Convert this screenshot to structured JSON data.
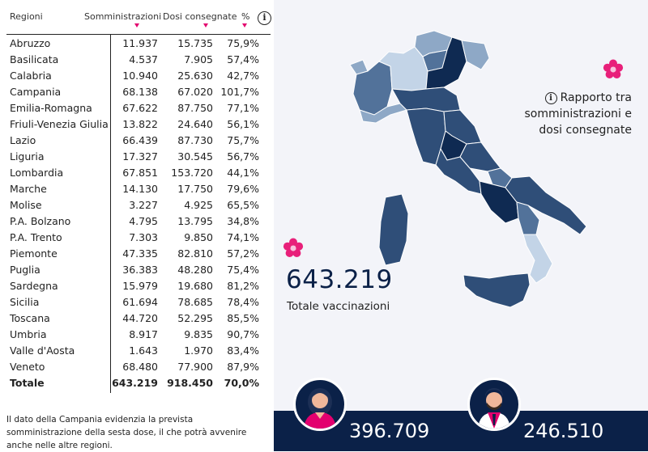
{
  "table": {
    "headers": {
      "region": "Regioni",
      "somministrazioni": "Somministrazioni",
      "dosi": "Dosi consegnate",
      "pct": "%"
    },
    "rows": [
      {
        "name": "Abruzzo",
        "somministrazioni": "11.937",
        "dosi": "15.735",
        "pct": "75,9%"
      },
      {
        "name": "Basilicata",
        "somministrazioni": "4.537",
        "dosi": "7.905",
        "pct": "57,4%"
      },
      {
        "name": "Calabria",
        "somministrazioni": "10.940",
        "dosi": "25.630",
        "pct": "42,7%"
      },
      {
        "name": "Campania",
        "somministrazioni": "68.138",
        "dosi": "67.020",
        "pct": "101,7%"
      },
      {
        "name": "Emilia-Romagna",
        "somministrazioni": "67.622",
        "dosi": "87.750",
        "pct": "77,1%"
      },
      {
        "name": "Friuli-Venezia Giulia",
        "somministrazioni": "13.822",
        "dosi": "24.640",
        "pct": "56,1%"
      },
      {
        "name": "Lazio",
        "somministrazioni": "66.439",
        "dosi": "87.730",
        "pct": "75,7%"
      },
      {
        "name": "Liguria",
        "somministrazioni": "17.327",
        "dosi": "30.545",
        "pct": "56,7%"
      },
      {
        "name": "Lombardia",
        "somministrazioni": "67.851",
        "dosi": "153.720",
        "pct": "44,1%"
      },
      {
        "name": "Marche",
        "somministrazioni": "14.130",
        "dosi": "17.750",
        "pct": "79,6%"
      },
      {
        "name": "Molise",
        "somministrazioni": "3.227",
        "dosi": "4.925",
        "pct": "65,5%"
      },
      {
        "name": "P.A. Bolzano",
        "somministrazioni": "4.795",
        "dosi": "13.795",
        "pct": "34,8%"
      },
      {
        "name": "P.A. Trento",
        "somministrazioni": "7.303",
        "dosi": "9.850",
        "pct": "74,1%"
      },
      {
        "name": "Piemonte",
        "somministrazioni": "47.335",
        "dosi": "82.810",
        "pct": "57,2%"
      },
      {
        "name": "Puglia",
        "somministrazioni": "36.383",
        "dosi": "48.280",
        "pct": "75,4%"
      },
      {
        "name": "Sardegna",
        "somministrazioni": "15.979",
        "dosi": "19.680",
        "pct": "81,2%"
      },
      {
        "name": "Sicilia",
        "somministrazioni": "61.694",
        "dosi": "78.685",
        "pct": "78,4%"
      },
      {
        "name": "Toscana",
        "somministrazioni": "44.720",
        "dosi": "52.295",
        "pct": "85,5%"
      },
      {
        "name": "Umbria",
        "somministrazioni": "8.917",
        "dosi": "9.835",
        "pct": "90,7%"
      },
      {
        "name": "Valle d'Aosta",
        "somministrazioni": "1.643",
        "dosi": "1.970",
        "pct": "83,4%"
      },
      {
        "name": "Veneto",
        "somministrazioni": "68.480",
        "dosi": "77.900",
        "pct": "87,9%"
      }
    ],
    "total": {
      "name": "Totale",
      "somministrazioni": "643.219",
      "dosi": "918.450",
      "pct": "70,0%"
    }
  },
  "footnote": "Il dato della Campania evidenzia la prevista somministrazione della sesta dose, il che potrà avvenire anche nelle altre regioni.",
  "info_panel": {
    "title": "Rapporto tra somministrazioni e dosi consegnate",
    "icon": "info-icon"
  },
  "summary": {
    "total_value": "643.219",
    "total_label": "Totale vaccinazioni"
  },
  "gender_stats": {
    "female": {
      "value": "396.709",
      "icon": "female-avatar-icon"
    },
    "male": {
      "value": "246.510",
      "icon": "male-avatar-icon"
    }
  },
  "colors": {
    "navy": "#0b2148",
    "accent_pink": "#e3006e",
    "flower": "#e8207a",
    "map_darkest": "#0f2a52",
    "map_dark": "#2f4e78",
    "map_mid": "#52729a",
    "map_light": "#8ea8c6",
    "map_lightest": "#c3d4e7"
  }
}
